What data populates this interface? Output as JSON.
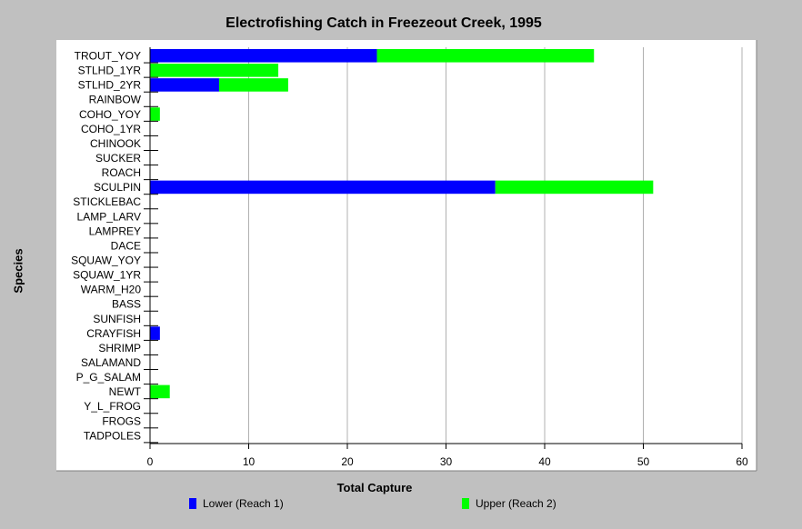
{
  "chart_data": {
    "type": "bar",
    "orientation": "horizontal",
    "stacked": true,
    "title": "Electrofishing Catch in Freezeout Creek, 1995",
    "xlabel": "Total Capture",
    "ylabel": "Species",
    "xlim": [
      0,
      60
    ],
    "xticks": [
      0,
      10,
      20,
      30,
      40,
      50,
      60
    ],
    "grid": true,
    "legend_position": "bottom",
    "categories": [
      "TROUT_YOY",
      "STLHD_1YR",
      "STLHD_2YR",
      "RAINBOW",
      "COHO_YOY",
      "COHO_1YR",
      "CHINOOK",
      "SUCKER",
      "ROACH",
      "SCULPIN",
      "STICKLEBAC",
      "LAMP_LARV",
      "LAMPREY",
      "DACE",
      "SQUAW_YOY",
      "SQUAW_1YR",
      "WARM_H20",
      "BASS",
      "SUNFISH",
      "CRAYFISH",
      "SHRIMP",
      "SALAMAND",
      "P_G_SALAM",
      "NEWT",
      "Y_L_FROG",
      "FROGS",
      "TADPOLES"
    ],
    "series": [
      {
        "name": "Lower (Reach 1)",
        "color": "#0000ff",
        "values": [
          23,
          0,
          7,
          0,
          0,
          0,
          0,
          0,
          0,
          35,
          0,
          0,
          0,
          0,
          0,
          0,
          0,
          0,
          0,
          1,
          0,
          0,
          0,
          0,
          0,
          0,
          0
        ]
      },
      {
        "name": "Upper (Reach 2)",
        "color": "#00ff00",
        "values": [
          22,
          13,
          7,
          0,
          1,
          0,
          0,
          0,
          0,
          16,
          0,
          0,
          0,
          0,
          0,
          0,
          0,
          0,
          0,
          0,
          0,
          0,
          0,
          2,
          0,
          0,
          0
        ]
      }
    ]
  }
}
